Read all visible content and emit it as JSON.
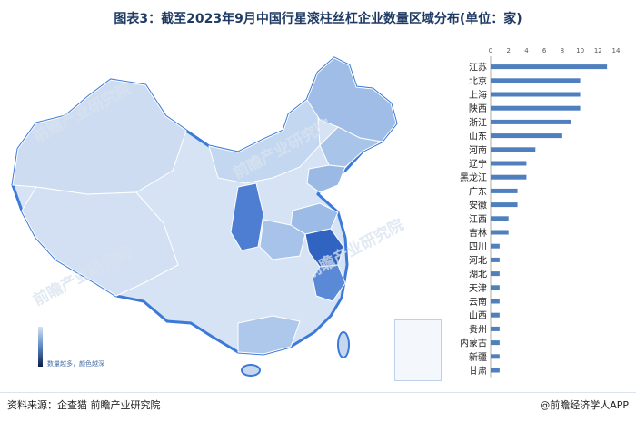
{
  "title": "图表3：截至2023年9月中国行星滚柱丝杠企业数量区域分布(单位：家)",
  "legend": {
    "text": "数量越多，颜色越深"
  },
  "footer": {
    "source": "资料来源：企查猫 前瞻产业研究院",
    "brand": "@前瞻经济学人APP"
  },
  "watermark": "前瞻产业研究院",
  "colors": {
    "bar": "#4f7fbf",
    "map_light": "#d9e5f5",
    "map_mid": "#9fbde6",
    "map_dark": "#3b6fc4",
    "border": "#3b7ad9"
  },
  "chart_data": {
    "type": "bar",
    "orientation": "horizontal",
    "categories": [
      "江苏",
      "北京",
      "上海",
      "陕西",
      "浙江",
      "山东",
      "河南",
      "辽宁",
      "黑龙江",
      "广东",
      "安徽",
      "江西",
      "吉林",
      "四川",
      "河北",
      "湖北",
      "天津",
      "云南",
      "山西",
      "贵州",
      "内蒙古",
      "新疆",
      "甘肃"
    ],
    "values": [
      13,
      10,
      10,
      10,
      9,
      8,
      5,
      4,
      4,
      3,
      3,
      2,
      2,
      1,
      1,
      1,
      1,
      1,
      1,
      1,
      1,
      1,
      1
    ],
    "xlim": [
      0,
      14
    ],
    "xticks": [
      0,
      2,
      4,
      6,
      8,
      10,
      12,
      14
    ],
    "grid": false
  }
}
